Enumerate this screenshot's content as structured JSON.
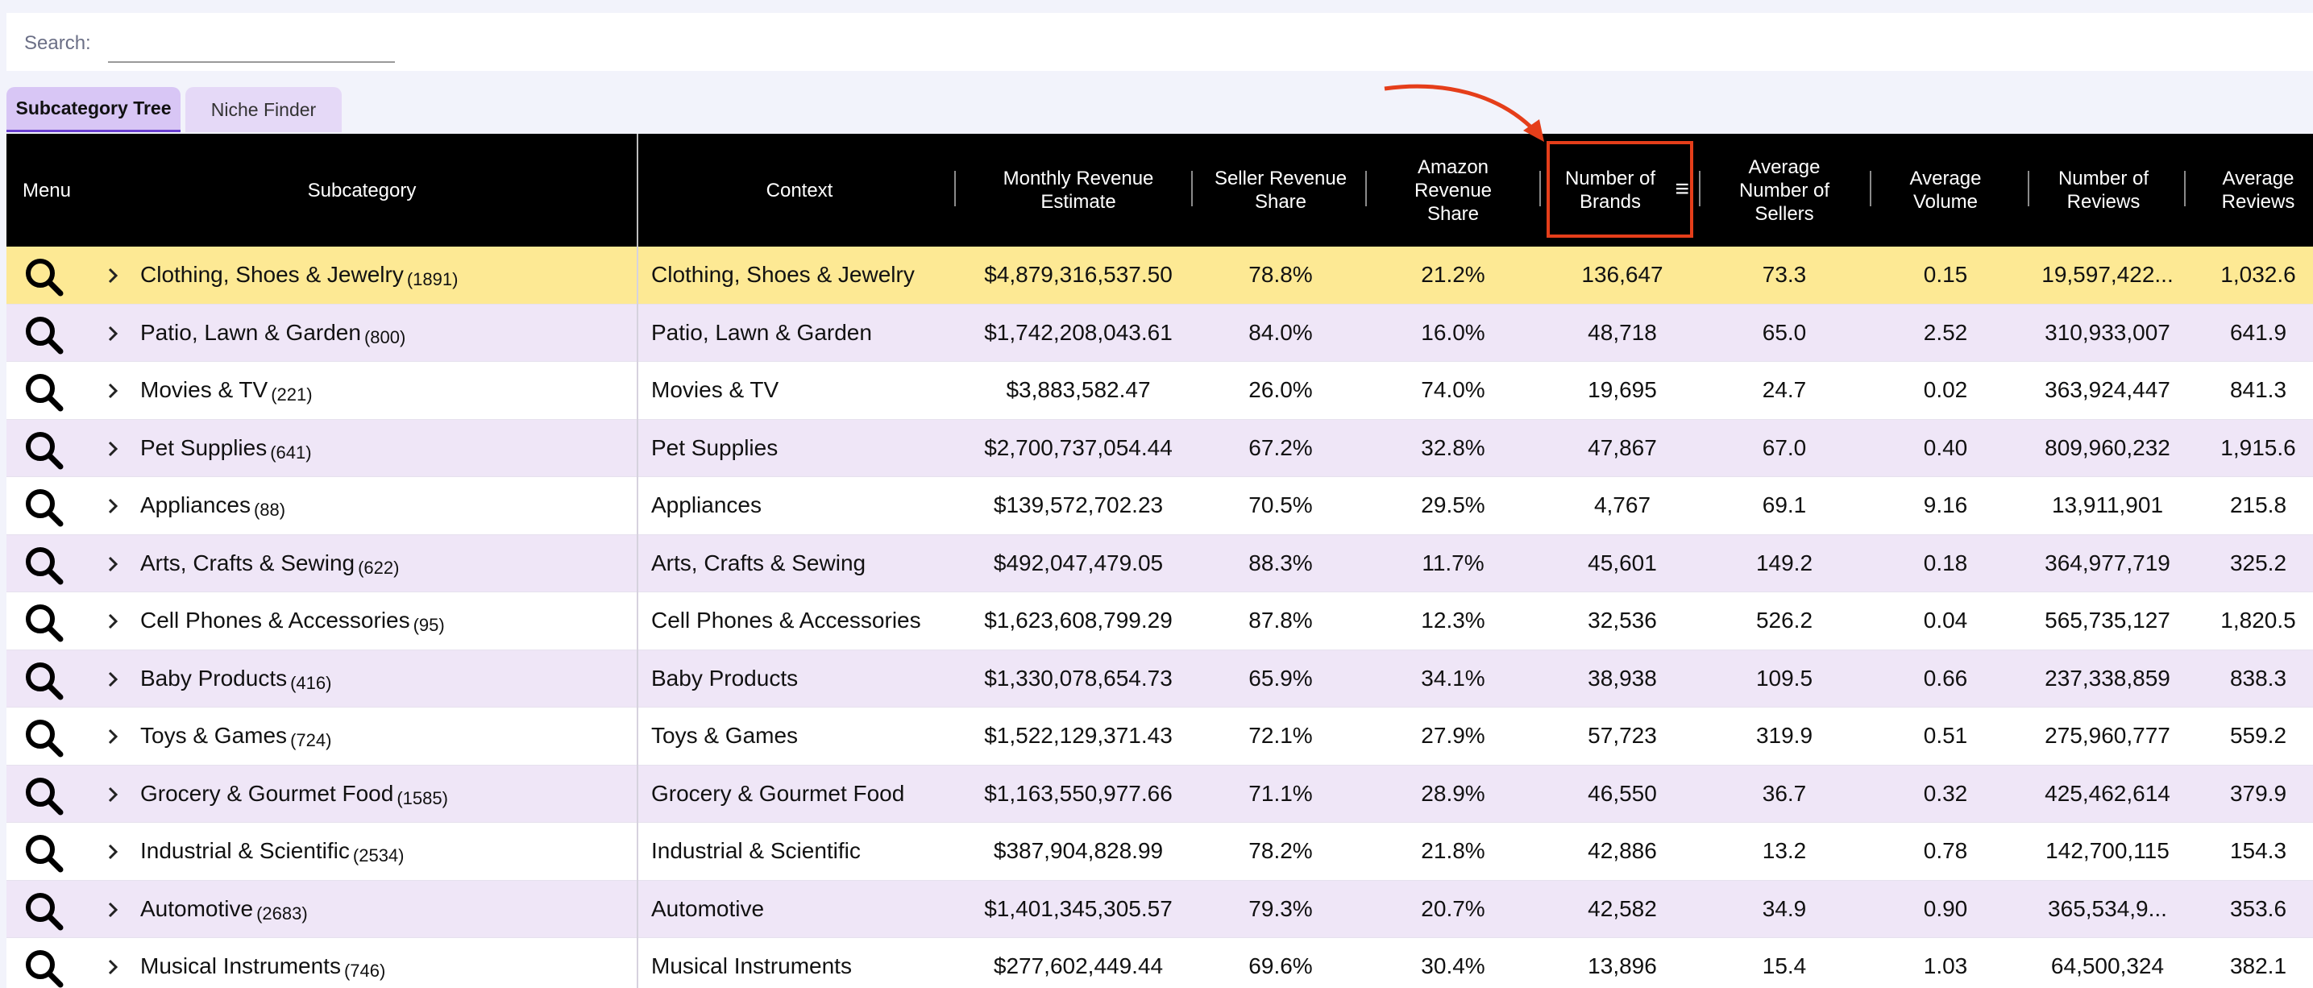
{
  "search": {
    "label": "Search:",
    "value": "",
    "placeholder": ""
  },
  "tabs": [
    {
      "label": "Subcategory Tree",
      "active": true
    },
    {
      "label": "Niche Finder",
      "active": false
    }
  ],
  "columns": {
    "menu": "Menu",
    "subcategory": "Subcategory",
    "context": "Context",
    "monthly_revenue": "Monthly Revenue\nEstimate",
    "seller_share": "Seller Revenue\nShare",
    "amazon_share": "Amazon\nRevenue\nShare",
    "brands": "Number of\nBrands",
    "avg_sellers": "Average\nNumber of\nSellers",
    "avg_volume": "Average\nVolume",
    "num_reviews": "Number of\nReviews",
    "avg_reviews": "Average\nReviews"
  },
  "colors": {
    "header_bg": "#000000",
    "selected_row": "#fde994",
    "alt_row": "#efe6f7",
    "highlight": "#e53e1a",
    "tab_active": "#d8c6f5"
  },
  "icons": {
    "search": "magnifier-icon",
    "expand": "chevron-right-icon",
    "column_menu": "hamburger-menu-icon",
    "annotation": "red-arrow"
  },
  "rows": [
    {
      "name": "Clothing, Shoes & Jewelry",
      "count": "(1891)",
      "context": "Clothing, Shoes & Jewelry",
      "revenue": "$4,879,316,537.50",
      "seller_share": "78.8%",
      "amazon_share": "21.2%",
      "brands": "136,647",
      "avg_sellers": "73.3",
      "avg_volume": "0.15",
      "num_reviews": "19,597,422...",
      "avg_reviews": "1,032.6",
      "selected": true
    },
    {
      "name": "Patio, Lawn & Garden",
      "count": "(800)",
      "context": "Patio, Lawn & Garden",
      "revenue": "$1,742,208,043.61",
      "seller_share": "84.0%",
      "amazon_share": "16.0%",
      "brands": "48,718",
      "avg_sellers": "65.0",
      "avg_volume": "2.52",
      "num_reviews": "310,933,007",
      "avg_reviews": "641.9"
    },
    {
      "name": "Movies & TV",
      "count": "(221)",
      "context": "Movies & TV",
      "revenue": "$3,883,582.47",
      "seller_share": "26.0%",
      "amazon_share": "74.0%",
      "brands": "19,695",
      "avg_sellers": "24.7",
      "avg_volume": "0.02",
      "num_reviews": "363,924,447",
      "avg_reviews": "841.3"
    },
    {
      "name": "Pet Supplies",
      "count": "(641)",
      "context": "Pet Supplies",
      "revenue": "$2,700,737,054.44",
      "seller_share": "67.2%",
      "amazon_share": "32.8%",
      "brands": "47,867",
      "avg_sellers": "67.0",
      "avg_volume": "0.40",
      "num_reviews": "809,960,232",
      "avg_reviews": "1,915.6"
    },
    {
      "name": "Appliances",
      "count": "(88)",
      "context": "Appliances",
      "revenue": "$139,572,702.23",
      "seller_share": "70.5%",
      "amazon_share": "29.5%",
      "brands": "4,767",
      "avg_sellers": "69.1",
      "avg_volume": "9.16",
      "num_reviews": "13,911,901",
      "avg_reviews": "215.8"
    },
    {
      "name": "Arts, Crafts & Sewing",
      "count": "(622)",
      "context": "Arts, Crafts & Sewing",
      "revenue": "$492,047,479.05",
      "seller_share": "88.3%",
      "amazon_share": "11.7%",
      "brands": "45,601",
      "avg_sellers": "149.2",
      "avg_volume": "0.18",
      "num_reviews": "364,977,719",
      "avg_reviews": "325.2"
    },
    {
      "name": "Cell Phones & Accessories",
      "count": "(95)",
      "context": "Cell Phones & Accessories",
      "revenue": "$1,623,608,799.29",
      "seller_share": "87.8%",
      "amazon_share": "12.3%",
      "brands": "32,536",
      "avg_sellers": "526.2",
      "avg_volume": "0.04",
      "num_reviews": "565,735,127",
      "avg_reviews": "1,820.5"
    },
    {
      "name": "Baby Products",
      "count": "(416)",
      "context": "Baby Products",
      "revenue": "$1,330,078,654.73",
      "seller_share": "65.9%",
      "amazon_share": "34.1%",
      "brands": "38,938",
      "avg_sellers": "109.5",
      "avg_volume": "0.66",
      "num_reviews": "237,338,859",
      "avg_reviews": "838.3"
    },
    {
      "name": "Toys & Games",
      "count": "(724)",
      "context": "Toys & Games",
      "revenue": "$1,522,129,371.43",
      "seller_share": "72.1%",
      "amazon_share": "27.9%",
      "brands": "57,723",
      "avg_sellers": "319.9",
      "avg_volume": "0.51",
      "num_reviews": "275,960,777",
      "avg_reviews": "559.2"
    },
    {
      "name": "Grocery & Gourmet Food",
      "count": "(1585)",
      "context": "Grocery & Gourmet Food",
      "revenue": "$1,163,550,977.66",
      "seller_share": "71.1%",
      "amazon_share": "28.9%",
      "brands": "46,550",
      "avg_sellers": "36.7",
      "avg_volume": "0.32",
      "num_reviews": "425,462,614",
      "avg_reviews": "379.9"
    },
    {
      "name": "Industrial & Scientific",
      "count": "(2534)",
      "context": "Industrial & Scientific",
      "revenue": "$387,904,828.99",
      "seller_share": "78.2%",
      "amazon_share": "21.8%",
      "brands": "42,886",
      "avg_sellers": "13.2",
      "avg_volume": "0.78",
      "num_reviews": "142,700,115",
      "avg_reviews": "154.3"
    },
    {
      "name": "Automotive",
      "count": "(2683)",
      "context": "Automotive",
      "revenue": "$1,401,345,305.57",
      "seller_share": "79.3%",
      "amazon_share": "20.7%",
      "brands": "42,582",
      "avg_sellers": "34.9",
      "avg_volume": "0.90",
      "num_reviews": "365,534,9...",
      "avg_reviews": "353.6"
    },
    {
      "name": "Musical Instruments",
      "count": "(746)",
      "context": "Musical Instruments",
      "revenue": "$277,602,449.44",
      "seller_share": "69.6%",
      "amazon_share": "30.4%",
      "brands": "13,896",
      "avg_sellers": "15.4",
      "avg_volume": "1.03",
      "num_reviews": "64,500,324",
      "avg_reviews": "382.1"
    }
  ]
}
